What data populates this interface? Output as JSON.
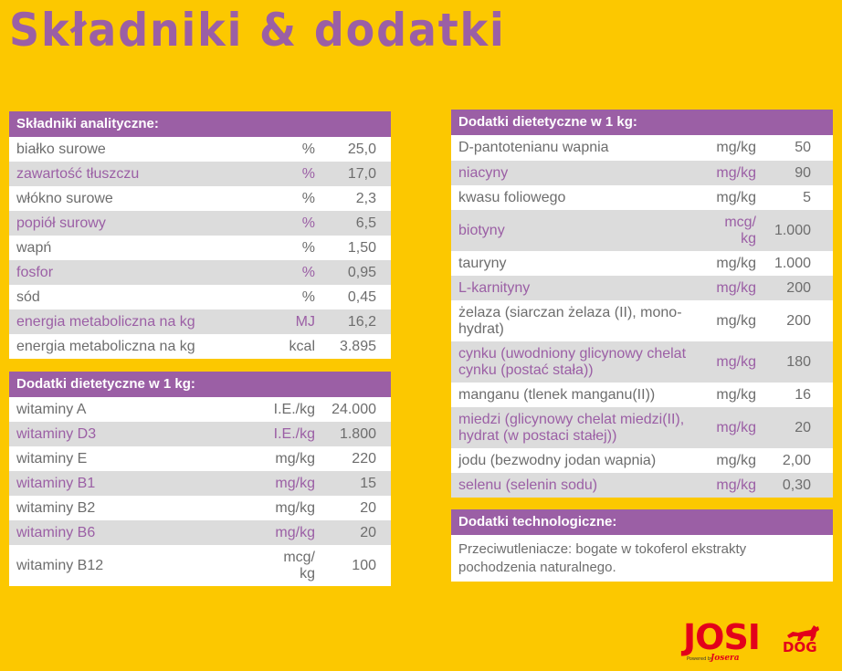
{
  "page": {
    "title": "Składniki & dodatki"
  },
  "left_table_1": {
    "header": "Składniki analityczne:",
    "rows": [
      {
        "name": "białko surowe",
        "unit": "%",
        "value": "25,0"
      },
      {
        "name": "zawartość tłuszczu",
        "unit": "%",
        "value": "17,0"
      },
      {
        "name": "włókno surowe",
        "unit": "%",
        "value": "2,3"
      },
      {
        "name": "popiół surowy",
        "unit": "%",
        "value": "6,5"
      },
      {
        "name": "wapń",
        "unit": "%",
        "value": "1,50"
      },
      {
        "name": "fosfor",
        "unit": "%",
        "value": "0,95"
      },
      {
        "name": "sód",
        "unit": "%",
        "value": "0,45"
      },
      {
        "name": "energia metaboliczna na kg",
        "unit": "MJ",
        "value": "16,2"
      },
      {
        "name": "energia metaboliczna na kg",
        "unit": "kcal",
        "value": "3.895"
      }
    ]
  },
  "left_table_2": {
    "header": "Dodatki dietetyczne w 1 kg:",
    "rows": [
      {
        "name": "witaminy A",
        "unit": "I.E./kg",
        "value": "24.000"
      },
      {
        "name": "witaminy D3",
        "unit": "I.E./kg",
        "value": "1.800"
      },
      {
        "name": "witaminy E",
        "unit": "mg/kg",
        "value": "220"
      },
      {
        "name": "witaminy B1",
        "unit": "mg/kg",
        "value": "15"
      },
      {
        "name": "witaminy B2",
        "unit": "mg/kg",
        "value": "20"
      },
      {
        "name": "witaminy B6",
        "unit": "mg/kg",
        "value": "20"
      },
      {
        "name": "witaminy B12",
        "unit": "mcg/\nkg",
        "value": "100"
      }
    ]
  },
  "right_table_1": {
    "header": "Dodatki dietetyczne w 1 kg:",
    "rows": [
      {
        "name": "D-pantotenianu wapnia",
        "unit": "mg/kg",
        "value": "50"
      },
      {
        "name": "niacyny",
        "unit": "mg/kg",
        "value": "90"
      },
      {
        "name": "kwasu foliowego",
        "unit": "mg/kg",
        "value": "5"
      },
      {
        "name": "biotyny",
        "unit": "mcg/\nkg",
        "value": "1.000"
      },
      {
        "name": "tauryny",
        "unit": "mg/kg",
        "value": "1.000"
      },
      {
        "name": "L-karnityny",
        "unit": "mg/kg",
        "value": "200"
      },
      {
        "name": "żelaza (siarczan żelaza (II), mono-\nhydrat)",
        "unit": "mg/kg",
        "value": "200"
      },
      {
        "name": "cynku (uwodniony glicynowy chelat\ncynku (postać stała))",
        "unit": "mg/kg",
        "value": "180"
      },
      {
        "name": "manganu (tlenek manganu(II))",
        "unit": "mg/kg",
        "value": "16"
      },
      {
        "name": "miedzi (glicynowy chelat miedzi(II),\nhydrat (w postaci stałej))",
        "unit": "mg/kg",
        "value": "20"
      },
      {
        "name": "jodu (bezwodny jodan wapnia)",
        "unit": "mg/kg",
        "value": "2,00"
      },
      {
        "name": "selenu (selenin sodu)",
        "unit": "mg/kg",
        "value": "0,30"
      }
    ]
  },
  "tech": {
    "header": "Dodatki technologiczne:",
    "text": "Przeciwutleniacze: bogate w tokoferol ekstrakty pochodzenia naturalnego."
  },
  "logo": {
    "josi": "JOSI",
    "dog": "DOG",
    "powered": "Powered by",
    "josera": "Josera",
    "icon": "dog-icon"
  },
  "colors": {
    "background": "#fcc800",
    "accent": "#9b5fa5",
    "row_grey": "#dcdcdc",
    "brand_red": "#e3001b"
  }
}
